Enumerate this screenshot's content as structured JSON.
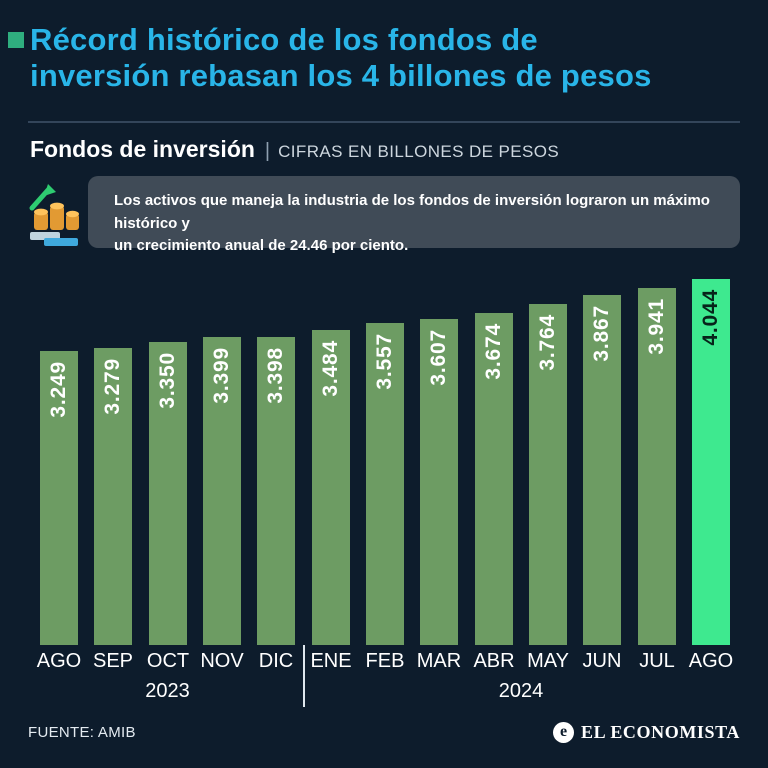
{
  "colors": {
    "background": "#0d1c2c",
    "title": "#29b5e8",
    "accent_square": "#2fae7f",
    "bar": "#6d9c63",
    "bar_highlight": "#3ee98f",
    "callout_background": "#404b57"
  },
  "header": {
    "title_line1": "Récord histórico de los fondos de",
    "title_line2": "inversión rebasan los 4 billones de pesos",
    "subtitle_bold": "Fondos de inversión",
    "subtitle_sep": "|",
    "subtitle_rest": "CIFRAS EN BILLONES DE PESOS"
  },
  "callout": {
    "line1": "Los activos que maneja la industria de los fondos de inversión lograron un máximo histórico y",
    "line2": "un crecimiento anual de 24.46 por ciento."
  },
  "chart_data": {
    "type": "bar",
    "title": "Fondos de inversión",
    "units_label": "CIFRAS EN BILLONES DE PESOS",
    "categories": [
      "AGO",
      "SEP",
      "OCT",
      "NOV",
      "DIC",
      "ENE",
      "FEB",
      "MAR",
      "ABR",
      "MAY",
      "JUN",
      "JUL",
      "AGO"
    ],
    "values": [
      3.249,
      3.279,
      3.35,
      3.399,
      3.398,
      3.484,
      3.557,
      3.607,
      3.674,
      3.764,
      3.867,
      3.941,
      4.044
    ],
    "labels": [
      "3.249",
      "3.279",
      "3.350",
      "3.399",
      "3.398",
      "3.484",
      "3.557",
      "3.607",
      "3.674",
      "3.764",
      "3.867",
      "3.941",
      "4.044"
    ],
    "highlight_index": 12,
    "year_groups": [
      {
        "label": "2023",
        "span": [
          0,
          4
        ]
      },
      {
        "label": "2024",
        "span": [
          5,
          12
        ]
      }
    ],
    "ylim": [
      0,
      4.044
    ],
    "grid": false,
    "legend": false
  },
  "footer": {
    "source": "FUENTE: AMIB",
    "brand_mark": "e",
    "brand": "EL ECONOMISTA"
  }
}
